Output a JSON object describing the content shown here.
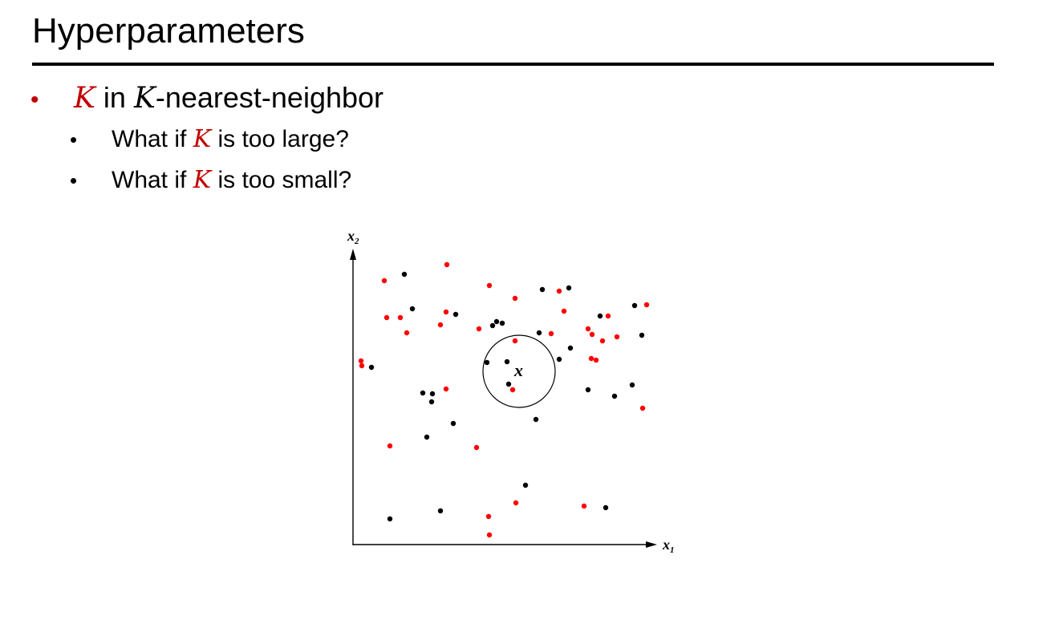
{
  "slide": {
    "title": "Hyperparameters"
  },
  "bullets": {
    "main": {
      "k_symbol": "K",
      "text_in": " in ",
      "k_symbol_2": "K",
      "text_rest": "-nearest-neighbor"
    },
    "sub": [
      {
        "prefix": "What if ",
        "k_symbol": "K",
        "suffix": " is too large?"
      },
      {
        "prefix": "What if ",
        "k_symbol": "K",
        "suffix": " is too small?"
      }
    ]
  },
  "figure": {
    "x_axis_label": "x",
    "x_axis_subscript": "1",
    "y_axis_label": "x",
    "y_axis_subscript": "2",
    "query_label": "x",
    "colors": {
      "red": "#ff0000",
      "black": "#000000",
      "title_bullet": "#c00000"
    }
  }
}
